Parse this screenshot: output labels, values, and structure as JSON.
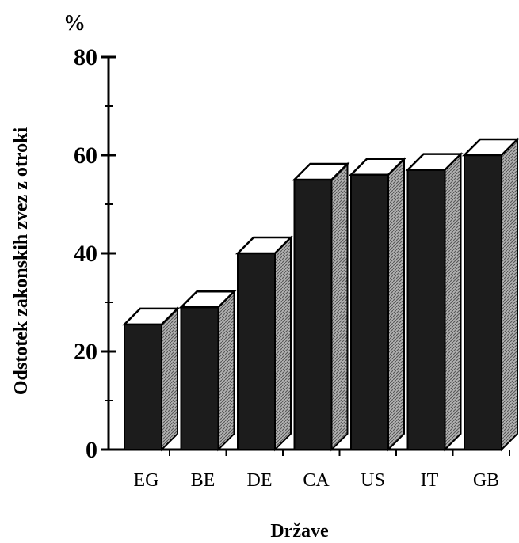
{
  "chart_data": {
    "type": "bar",
    "categories": [
      "EG",
      "BE",
      "DE",
      "CA",
      "US",
      "IT",
      "GB"
    ],
    "values": [
      25.5,
      29,
      40,
      55,
      56,
      57,
      60
    ],
    "unit_label": "%",
    "ylabel": "Odstotek zakonskih zvez z otroki",
    "xlabel": "Države",
    "ylim": [
      0,
      80
    ],
    "yticks": [
      0,
      20,
      40,
      60,
      80
    ],
    "grid": false,
    "style": "3d",
    "colors": {
      "front": "#1c1c1c",
      "side": "#8a8a8a",
      "top": "#ffffff",
      "stroke": "#000000"
    }
  }
}
